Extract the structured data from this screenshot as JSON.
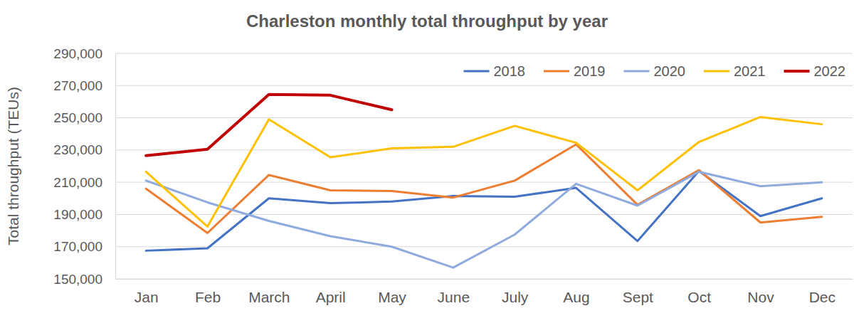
{
  "chart_data": {
    "type": "line",
    "title": "Charleston monthly total throughput by year",
    "y_label": "Total throughput (TEUs)",
    "categories": [
      "Jan",
      "Feb",
      "March",
      "April",
      "May",
      "June",
      "July",
      "Aug",
      "Sept",
      "Oct",
      "Nov",
      "Dec"
    ],
    "series": [
      {
        "name": "2018",
        "color": "#4472c4",
        "values": [
          167500,
          169000,
          200000,
          197000,
          198000,
          201500,
          201000,
          206500,
          173500,
          217000,
          189000,
          200000
        ]
      },
      {
        "name": "2019",
        "color": "#ed7d31",
        "values": [
          206000,
          178500,
          214500,
          205000,
          204500,
          200500,
          211000,
          233500,
          196000,
          217500,
          185000,
          188500
        ]
      },
      {
        "name": "2020",
        "color": "#8faadc",
        "values": [
          211000,
          197500,
          186000,
          176500,
          170000,
          157000,
          177500,
          209000,
          195500,
          216500,
          207500,
          210000
        ]
      },
      {
        "name": "2021",
        "color": "#ffc000",
        "values": [
          216500,
          182500,
          249000,
          225500,
          231000,
          232000,
          245000,
          234500,
          205000,
          235000,
          250500,
          246000
        ]
      },
      {
        "name": "2022",
        "color": "#c00000",
        "values": [
          226500,
          230500,
          264500,
          264000,
          255000,
          null,
          null,
          null,
          null,
          null,
          null,
          null
        ]
      }
    ],
    "ylim": [
      150000,
      290000
    ],
    "yticks": [
      {
        "value": 150000,
        "label": "150,000"
      },
      {
        "value": 170000,
        "label": "170,000"
      },
      {
        "value": 190000,
        "label": "190,000"
      },
      {
        "value": 210000,
        "label": "210,000"
      },
      {
        "value": 230000,
        "label": "230,000"
      },
      {
        "value": 250000,
        "label": "250,000"
      },
      {
        "value": 270000,
        "label": "270,000"
      },
      {
        "value": 290000,
        "label": "290,000"
      }
    ],
    "grid": true,
    "legend": "upper right"
  }
}
